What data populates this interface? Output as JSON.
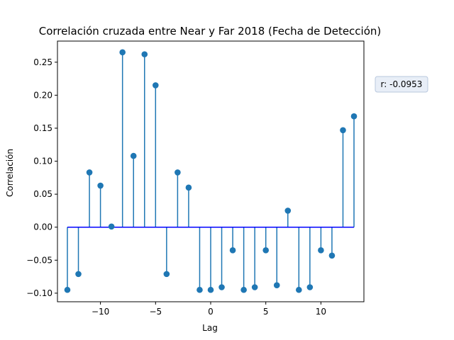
{
  "chart_data": {
    "type": "stem",
    "title": "Correlación cruzada entre Near y Far 2018 (Fecha de Detección)",
    "xlabel": "Lag",
    "ylabel": "Correlación",
    "xlim": [
      -13.9,
      13.9
    ],
    "ylim": [
      -0.113,
      0.282
    ],
    "xticks": [
      -10,
      -5,
      0,
      5,
      10
    ],
    "yticks": [
      -0.1,
      -0.05,
      0.0,
      0.05,
      0.1,
      0.15,
      0.2,
      0.25
    ],
    "grid": false,
    "colors": {
      "stem": "#1f77b4",
      "baseline": "#0000ff"
    },
    "points": [
      {
        "lag": -13,
        "value": -0.095
      },
      {
        "lag": -12,
        "value": -0.071
      },
      {
        "lag": -11,
        "value": 0.083
      },
      {
        "lag": -10,
        "value": 0.063
      },
      {
        "lag": -9,
        "value": 0.001
      },
      {
        "lag": -8,
        "value": 0.265
      },
      {
        "lag": -7,
        "value": 0.108
      },
      {
        "lag": -6,
        "value": 0.262
      },
      {
        "lag": -5,
        "value": 0.215
      },
      {
        "lag": -4,
        "value": -0.071
      },
      {
        "lag": -3,
        "value": 0.083
      },
      {
        "lag": -2,
        "value": 0.06
      },
      {
        "lag": -1,
        "value": -0.095
      },
      {
        "lag": 0,
        "value": -0.095
      },
      {
        "lag": 1,
        "value": -0.091
      },
      {
        "lag": 2,
        "value": -0.035
      },
      {
        "lag": 3,
        "value": -0.095
      },
      {
        "lag": 4,
        "value": -0.091
      },
      {
        "lag": 5,
        "value": -0.035
      },
      {
        "lag": 6,
        "value": -0.088
      },
      {
        "lag": 7,
        "value": 0.025
      },
      {
        "lag": 8,
        "value": -0.095
      },
      {
        "lag": 9,
        "value": -0.091
      },
      {
        "lag": 10,
        "value": -0.035
      },
      {
        "lag": 11,
        "value": -0.043
      },
      {
        "lag": 12,
        "value": 0.147
      },
      {
        "lag": 13,
        "value": 0.168
      }
    ],
    "annotation": {
      "text": "r: -0.0953"
    }
  }
}
